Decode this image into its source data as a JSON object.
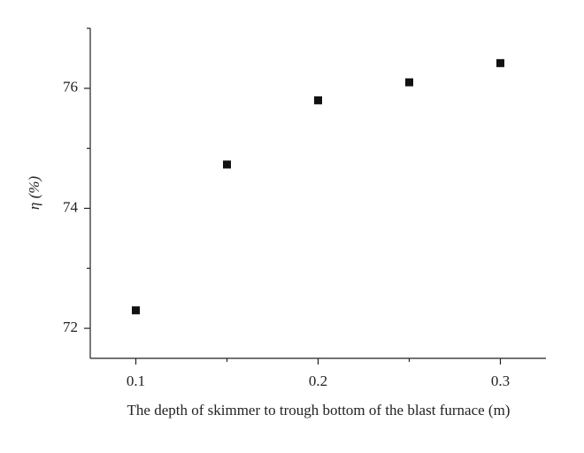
{
  "chart_data": {
    "type": "scatter",
    "x_label": "The depth of skimmer to trough bottom of the blast furnace (m)",
    "y_label": "η (%)",
    "x": [
      0.1,
      0.15,
      0.2,
      0.25,
      0.3
    ],
    "values": [
      72.3,
      74.73,
      75.8,
      76.1,
      76.42
    ],
    "color": "#111111",
    "xlim": [
      0.075,
      0.325
    ],
    "xticks": [
      0.1,
      0.2,
      0.3
    ],
    "xminorticks": [
      0.15,
      0.25
    ],
    "ylim": [
      71.5,
      77
    ],
    "yticks": [
      72,
      74,
      76
    ],
    "yminorticks": [
      73,
      75,
      77
    ]
  }
}
